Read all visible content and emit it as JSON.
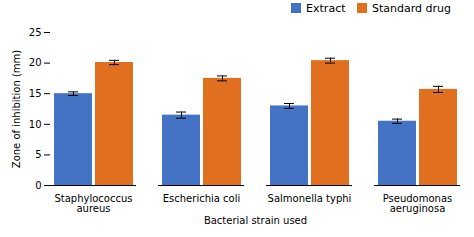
{
  "chart_data": {
    "type": "bar",
    "categories": [
      "Staphylococcus\naureus",
      "Escherichia coli",
      "Salmonella typhi",
      "Pseudomonas\naeruginosa"
    ],
    "series": [
      {
        "name": "Extract",
        "color": "#4472C4",
        "values": [
          15.0,
          11.5,
          13.0,
          10.5
        ],
        "errors": [
          0.3,
          0.5,
          0.4,
          0.35
        ]
      },
      {
        "name": "Standard drug",
        "color": "#E07020",
        "values": [
          20.1,
          17.5,
          20.4,
          15.7
        ],
        "errors": [
          0.35,
          0.4,
          0.4,
          0.5
        ]
      }
    ],
    "xlabel": "Bacterial strain used",
    "ylabel": "Zone of inhibition (mm)",
    "ylim": [
      0,
      25
    ],
    "yticks": [
      0,
      5,
      10,
      15,
      20,
      25
    ],
    "grid": false,
    "legend": "upper right"
  }
}
